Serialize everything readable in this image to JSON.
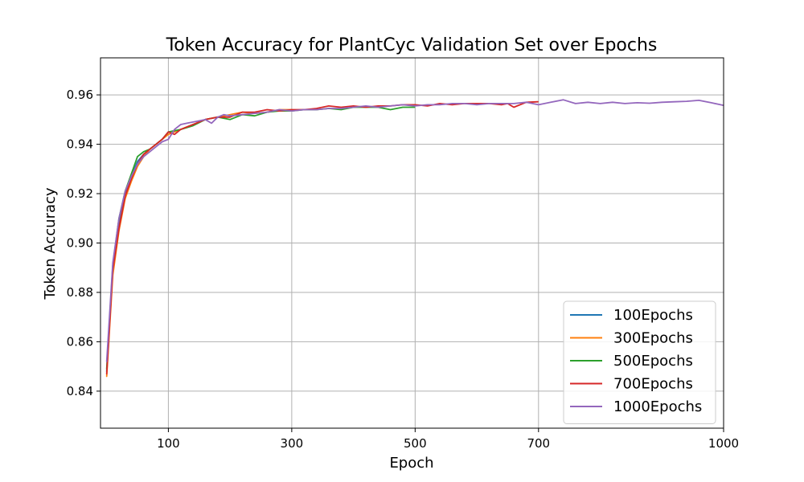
{
  "chart_data": {
    "type": "line",
    "title": "Token Accuracy for PlantCyc Validation Set over Epochs",
    "xlabel": "Epoch",
    "ylabel": "Token Accuracy",
    "xlim": [
      -10,
      1000
    ],
    "ylim": [
      0.825,
      0.975
    ],
    "xticks": [
      100,
      300,
      500,
      700,
      1000
    ],
    "yticks": [
      0.84,
      0.86,
      0.88,
      0.9,
      0.92,
      0.94,
      0.96
    ],
    "ytick_labels": [
      "0.84",
      "0.86",
      "0.88",
      "0.90",
      "0.92",
      "0.94",
      "0.96"
    ],
    "grid": true,
    "legend_position": "lower-right",
    "series": [
      {
        "name": "100Epochs",
        "color": "#1f77b4",
        "x": [
          0,
          10,
          20,
          30,
          40,
          50,
          60,
          70,
          80,
          90,
          99
        ],
        "y": [
          0.848,
          0.89,
          0.908,
          0.92,
          0.927,
          0.933,
          0.936,
          0.938,
          0.94,
          0.942,
          0.944
        ]
      },
      {
        "name": "300Epochs",
        "color": "#ff7f0e",
        "x": [
          0,
          10,
          20,
          30,
          40,
          50,
          60,
          70,
          80,
          90,
          100,
          120,
          140,
          160,
          180,
          200,
          220,
          240,
          260,
          280,
          299
        ],
        "y": [
          0.846,
          0.887,
          0.905,
          0.918,
          0.925,
          0.931,
          0.935,
          0.938,
          0.94,
          0.942,
          0.944,
          0.946,
          0.948,
          0.95,
          0.951,
          0.952,
          0.953,
          0.9525,
          0.953,
          0.954,
          0.954
        ]
      },
      {
        "name": "500Epochs",
        "color": "#2ca02c",
        "x": [
          0,
          10,
          20,
          30,
          40,
          50,
          60,
          70,
          80,
          90,
          100,
          120,
          140,
          160,
          180,
          200,
          220,
          240,
          260,
          280,
          300,
          320,
          340,
          360,
          380,
          400,
          420,
          440,
          460,
          480,
          499
        ],
        "y": [
          0.849,
          0.891,
          0.91,
          0.921,
          0.928,
          0.935,
          0.937,
          0.938,
          0.94,
          0.942,
          0.945,
          0.946,
          0.9475,
          0.95,
          0.951,
          0.95,
          0.952,
          0.9515,
          0.953,
          0.9535,
          0.9535,
          0.954,
          0.954,
          0.9545,
          0.954,
          0.955,
          0.955,
          0.955,
          0.954,
          0.955,
          0.955
        ]
      },
      {
        "name": "700Epochs",
        "color": "#d62728",
        "x": [
          0,
          10,
          20,
          30,
          40,
          50,
          60,
          70,
          80,
          90,
          100,
          110,
          120,
          140,
          160,
          180,
          200,
          220,
          240,
          260,
          280,
          300,
          320,
          340,
          360,
          380,
          400,
          420,
          440,
          460,
          480,
          500,
          520,
          540,
          560,
          580,
          600,
          620,
          640,
          650,
          660,
          680,
          699
        ],
        "y": [
          0.847,
          0.889,
          0.906,
          0.919,
          0.926,
          0.932,
          0.936,
          0.938,
          0.94,
          0.942,
          0.945,
          0.944,
          0.946,
          0.948,
          0.95,
          0.951,
          0.951,
          0.953,
          0.953,
          0.954,
          0.9535,
          0.954,
          0.954,
          0.9545,
          0.9555,
          0.955,
          0.9555,
          0.955,
          0.9555,
          0.9555,
          0.956,
          0.956,
          0.9555,
          0.9565,
          0.956,
          0.9565,
          0.9565,
          0.9565,
          0.956,
          0.9565,
          0.955,
          0.957,
          0.9572
        ]
      },
      {
        "name": "1000Epochs",
        "color": "#9467bd",
        "x": [
          0,
          10,
          20,
          30,
          40,
          50,
          60,
          70,
          80,
          90,
          100,
          110,
          120,
          130,
          140,
          150,
          160,
          170,
          180,
          190,
          200,
          220,
          240,
          260,
          280,
          300,
          320,
          340,
          360,
          380,
          400,
          420,
          440,
          460,
          480,
          500,
          520,
          540,
          560,
          580,
          600,
          620,
          640,
          660,
          680,
          700,
          720,
          740,
          760,
          780,
          800,
          820,
          840,
          860,
          880,
          900,
          920,
          940,
          960,
          980,
          999
        ],
        "y": [
          0.852,
          0.892,
          0.91,
          0.921,
          0.927,
          0.932,
          0.935,
          0.937,
          0.939,
          0.941,
          0.942,
          0.946,
          0.948,
          0.9485,
          0.949,
          0.9495,
          0.95,
          0.9485,
          0.951,
          0.952,
          0.9515,
          0.952,
          0.9525,
          0.953,
          0.954,
          0.9535,
          0.954,
          0.954,
          0.9545,
          0.9545,
          0.955,
          0.9555,
          0.955,
          0.9555,
          0.956,
          0.9555,
          0.956,
          0.956,
          0.9565,
          0.9565,
          0.956,
          0.9565,
          0.9565,
          0.9565,
          0.957,
          0.956,
          0.957,
          0.958,
          0.9565,
          0.957,
          0.9565,
          0.957,
          0.9565,
          0.9568,
          0.9566,
          0.957,
          0.9572,
          0.9574,
          0.9578,
          0.9568,
          0.9558
        ]
      }
    ]
  }
}
